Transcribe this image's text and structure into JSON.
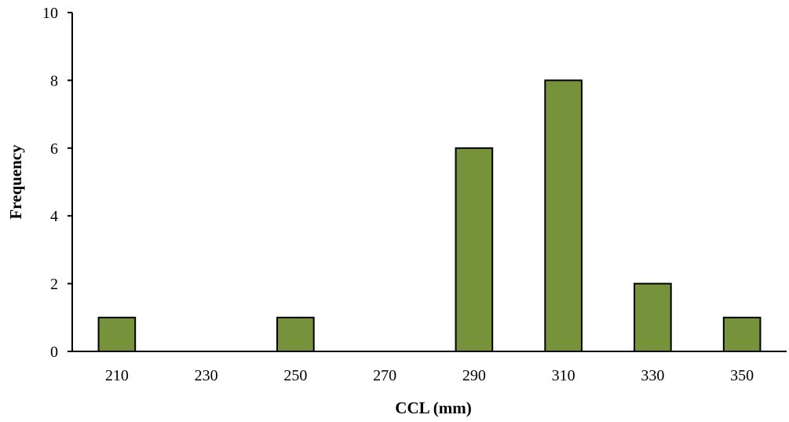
{
  "chart_data": {
    "type": "bar",
    "categories": [
      "210",
      "230",
      "250",
      "270",
      "290",
      "310",
      "330",
      "350"
    ],
    "values": [
      1,
      0,
      1,
      0,
      6,
      8,
      2,
      1
    ],
    "xlabel": "CCL (mm)",
    "ylabel": "Frequency",
    "ylim": [
      0,
      10
    ],
    "yticks": [
      0,
      2,
      4,
      6,
      8,
      10
    ],
    "grid": false,
    "legend": "none",
    "bar_color": "#76933C",
    "axis_color": "#000000"
  }
}
